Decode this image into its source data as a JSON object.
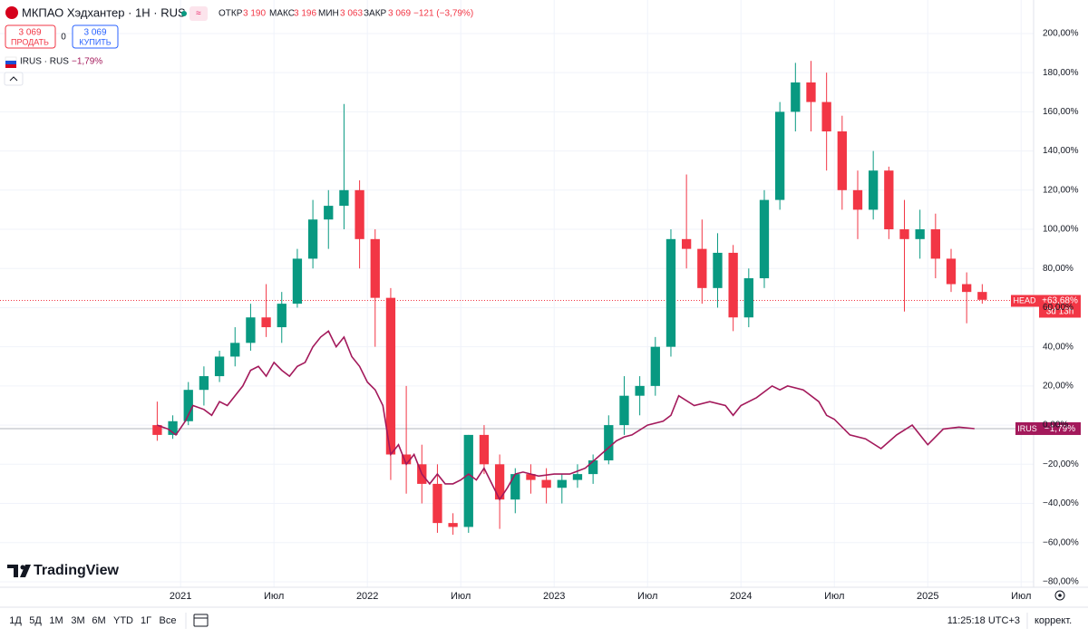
{
  "header": {
    "title": "МКПАО Хэдхантер · 1Н · RUS",
    "open_label": "ОТКР",
    "open": "3 190",
    "high_label": "МАКС",
    "high": "3 196",
    "low_label": "МИН",
    "low": "3 063",
    "close_label": "ЗАКР",
    "close": "3 069",
    "change": "−121 (−3,79%)",
    "sell_price": "3 069",
    "sell": "ПРОДАТЬ",
    "spread": "0",
    "buy_price": "3 069",
    "buy": "КУПИТЬ",
    "compare_name": "IRUS · RUS",
    "compare_change": "−1,79%"
  },
  "footer": {
    "ranges": [
      "1Д",
      "5Д",
      "1М",
      "3М",
      "6М",
      "YTD",
      "1Г",
      "Все"
    ],
    "time": "11:25:18 UTC+3",
    "adjust": "коррект.",
    "logo": "TradingView"
  },
  "chart_data": {
    "type": "candlestick",
    "name": "HEAD",
    "up_color": "#089981",
    "down_color": "#f23645",
    "x": [
      -1.5,
      -0.5,
      0.5,
      1.5,
      2.5,
      3.5,
      4.5,
      5.5,
      6.5,
      7.5,
      8.5,
      9.5,
      10.5,
      11.5,
      12.5,
      13.5,
      14.5,
      15.5,
      16.5,
      17.5,
      18.5,
      19.5,
      20.5,
      21.5,
      22.5,
      23.5,
      24.5,
      25.5,
      26.5,
      27.5,
      28.5,
      29.5,
      30.5,
      31.5,
      32.5,
      33.5,
      34.5,
      35.5,
      36.5,
      37.5,
      38.5,
      39.5,
      40.5,
      41.5,
      42.5,
      43.5,
      44.5,
      45.5,
      46.5,
      47.5,
      48.5,
      49.5,
      50.5,
      51.5
    ],
    "open": [
      0,
      -5,
      2,
      18,
      25,
      35,
      42,
      55,
      50,
      62,
      85,
      105,
      112,
      120,
      95,
      65,
      -15,
      -20,
      -30,
      -50,
      -52,
      -5,
      -20,
      -38,
      -25,
      -28,
      -32,
      -28,
      -25,
      -18,
      0,
      15,
      20,
      40,
      95,
      90,
      70,
      88,
      55,
      75,
      115,
      160,
      175,
      165,
      150,
      120,
      110,
      130,
      100,
      95,
      100,
      85,
      72,
      68
    ],
    "high": [
      12,
      5,
      22,
      30,
      38,
      50,
      62,
      72,
      68,
      90,
      115,
      120,
      164,
      125,
      100,
      70,
      20,
      -10,
      -20,
      -45,
      -5,
      0,
      -15,
      -22,
      -20,
      -22,
      -25,
      -20,
      -15,
      5,
      25,
      25,
      45,
      100,
      128,
      105,
      98,
      92,
      80,
      120,
      165,
      185,
      186,
      180,
      158,
      130,
      140,
      132,
      115,
      110,
      108,
      90,
      78,
      72
    ],
    "low": [
      -8,
      -7,
      0,
      10,
      22,
      30,
      38,
      45,
      42,
      60,
      80,
      90,
      100,
      80,
      40,
      -28,
      -35,
      -40,
      -55,
      -56,
      -55,
      -25,
      -53,
      -45,
      -35,
      -40,
      -40,
      -32,
      -30,
      -20,
      -5,
      5,
      15,
      35,
      80,
      62,
      60,
      48,
      50,
      70,
      110,
      150,
      150,
      130,
      110,
      95,
      105,
      95,
      58,
      85,
      75,
      68,
      52,
      62
    ],
    "close": [
      -5,
      2,
      18,
      25,
      35,
      42,
      55,
      50,
      62,
      85,
      105,
      112,
      120,
      95,
      65,
      -15,
      -20,
      -30,
      -50,
      -52,
      -5,
      -20,
      -38,
      -25,
      -28,
      -32,
      -28,
      -25,
      -18,
      0,
      15,
      20,
      40,
      95,
      90,
      70,
      88,
      55,
      75,
      115,
      160,
      175,
      165,
      150,
      120,
      110,
      130,
      100,
      95,
      100,
      85,
      72,
      68,
      64
    ],
    "last": {
      "value": 63.68,
      "label": "+63,68%",
      "countdown": "3d 13h"
    },
    "compare": {
      "name": "IRUS",
      "color": "#a3195b",
      "last": {
        "value": -1.79,
        "label": "−1,79%"
      },
      "x": [
        -1.5,
        -0.8,
        -0.3,
        0.3,
        0.8,
        1.5,
        2,
        2.5,
        3,
        3.5,
        4,
        4.5,
        5,
        5.5,
        6,
        6.5,
        7,
        7.5,
        8,
        8.5,
        9,
        9.5,
        10,
        10.5,
        11,
        11.5,
        12,
        12.5,
        13,
        13.5,
        14,
        14.5,
        15,
        15.5,
        16,
        16.5,
        17,
        17.5,
        18,
        18.5,
        19,
        19.5,
        20,
        20.5,
        21,
        21.5,
        22,
        23,
        24,
        25,
        26,
        27,
        28,
        28.5,
        29,
        30,
        31,
        31.5,
        32,
        33,
        34,
        35,
        35.5,
        36,
        37,
        38,
        38.5,
        39,
        40,
        41,
        41.5,
        42,
        43,
        44,
        45,
        46,
        47,
        48,
        49,
        50,
        51
      ],
      "values": [
        0,
        -2,
        -5,
        2,
        10,
        8,
        5,
        12,
        10,
        15,
        20,
        28,
        30,
        25,
        32,
        28,
        25,
        30,
        32,
        40,
        45,
        48,
        40,
        45,
        35,
        30,
        22,
        18,
        10,
        -15,
        -10,
        -20,
        -15,
        -25,
        -30,
        -25,
        -30,
        -30,
        -28,
        -25,
        -28,
        -22,
        -30,
        -38,
        -32,
        -25,
        -24,
        -26,
        -25,
        -25,
        -22,
        -15,
        -8,
        -6,
        -5,
        0,
        2,
        5,
        15,
        10,
        12,
        10,
        5,
        10,
        14,
        20,
        18,
        20,
        18,
        12,
        5,
        3,
        -5,
        -7,
        -12,
        -5,
        0,
        -10,
        -2,
        -1,
        -1.79
      ]
    },
    "xlim": [
      -11.6,
      54.8
    ],
    "xticks": [
      {
        "value": 0,
        "label": "2021"
      },
      {
        "value": 6,
        "label": "Июл"
      },
      {
        "value": 12,
        "label": "2022"
      },
      {
        "value": 18,
        "label": "Июл"
      },
      {
        "value": 24,
        "label": "2023"
      },
      {
        "value": 30,
        "label": "Июл"
      },
      {
        "value": 36,
        "label": "2024"
      },
      {
        "value": 42,
        "label": "Июл"
      },
      {
        "value": 48,
        "label": "2025"
      },
      {
        "value": 54,
        "label": "Июл"
      }
    ],
    "ylim": [
      -82.8,
      217.1
    ],
    "yticks": [
      {
        "value": 200,
        "label": "200,00%"
      },
      {
        "value": 180,
        "label": "180,00%"
      },
      {
        "value": 160,
        "label": "160,00%"
      },
      {
        "value": 140,
        "label": "140,00%"
      },
      {
        "value": 120,
        "label": "120,00%"
      },
      {
        "value": 100,
        "label": "100,00%"
      },
      {
        "value": 80,
        "label": "80,00%"
      },
      {
        "value": 60,
        "label": "60,00%"
      },
      {
        "value": 40,
        "label": "40,00%"
      },
      {
        "value": 20,
        "label": "20,00%"
      },
      {
        "value": 0,
        "label": "0,00%"
      },
      {
        "value": -20,
        "label": "−20,00%"
      },
      {
        "value": -40,
        "label": "−40,00%"
      },
      {
        "value": -60,
        "label": "−60,00%"
      },
      {
        "value": -80,
        "label": "−80,00%"
      }
    ],
    "grid": true
  }
}
